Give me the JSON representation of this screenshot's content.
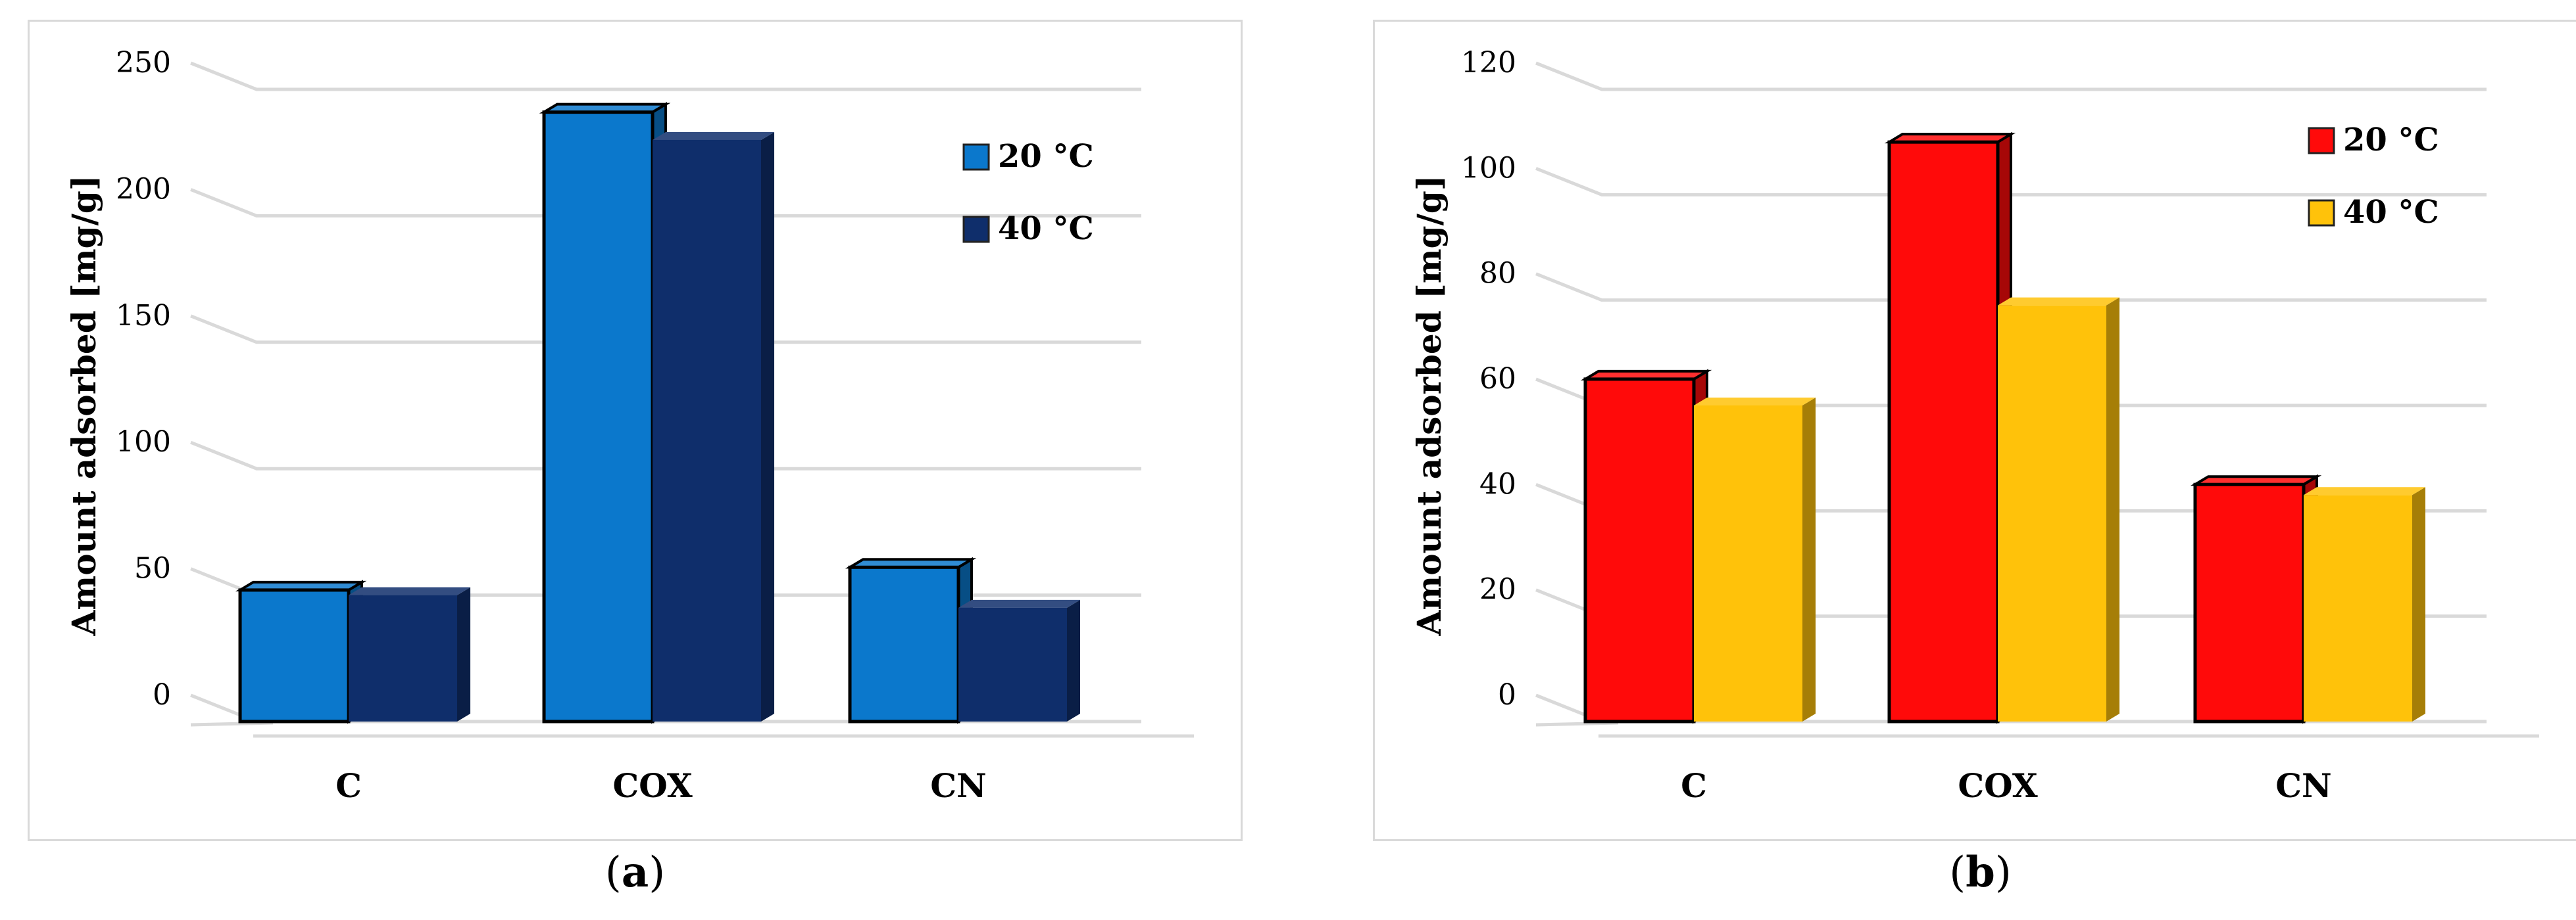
{
  "chart_data": [
    {
      "type": "bar",
      "categories": [
        "C",
        "COX",
        "CN"
      ],
      "series": [
        {
          "name": "20 °C",
          "values": [
            52,
            241,
            61
          ],
          "color": "#0b78cc"
        },
        {
          "name": "40 °C",
          "values": [
            50,
            230,
            45
          ],
          "color": "#0f2e6b"
        }
      ],
      "ylabel": "Amount adsorbed [mg/g]",
      "xlabel": "",
      "ylim": [
        0,
        250
      ],
      "yticks": [
        0,
        50,
        100,
        150,
        200,
        250
      ],
      "grid": true,
      "legend": "top-right",
      "caption_letter": "a"
    },
    {
      "type": "bar",
      "categories": [
        "C",
        "COX",
        "CN"
      ],
      "series": [
        {
          "name": "20 °C",
          "values": [
            65,
            110,
            45
          ],
          "color": "#ff0a0a"
        },
        {
          "name": "40 °C",
          "values": [
            60,
            79,
            43
          ],
          "color": "#ffc20a"
        }
      ],
      "ylabel": "Amount adsorbed [mg/g]",
      "xlabel": "",
      "ylim": [
        0,
        120
      ],
      "yticks": [
        0,
        20,
        40,
        60,
        80,
        100,
        120
      ],
      "grid": true,
      "legend": "top-right",
      "caption_letter": "b"
    }
  ]
}
